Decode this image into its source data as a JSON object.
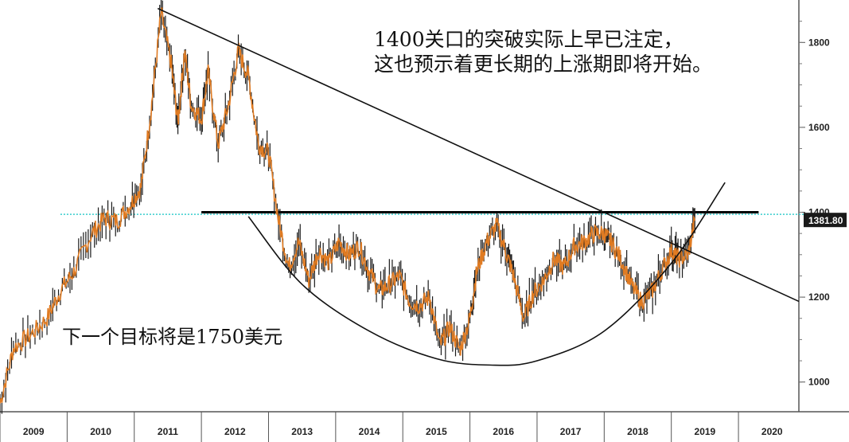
{
  "annotations": {
    "top_line1": "1400关口的突破实际上早已注定，",
    "top_line2": "这也预示着更长期的上涨期即将开始。",
    "bottom": "下一个目标将是1750美元"
  },
  "last_price_label": "1381.80",
  "colors": {
    "price": "#e07b22",
    "wick": "#1a1a1a",
    "resistance": "#000000",
    "dotted_level": "#33cccc",
    "price_tag_bg": "#1a1a1a"
  },
  "chart_data": {
    "type": "line",
    "title": "",
    "xlabel": "",
    "ylabel": "",
    "x_ticks": [
      "2009",
      "2010",
      "2011",
      "2012",
      "2013",
      "2014",
      "2015",
      "2016",
      "2017",
      "2018",
      "2019",
      "2020"
    ],
    "y_ticks": [
      1000,
      1200,
      1400,
      1600,
      1800
    ],
    "ylim": [
      930,
      1900
    ],
    "xlim": [
      2009.0,
      2020.9
    ],
    "grid": false,
    "legend": "none",
    "series": [
      {
        "x": [
          2009.0,
          2009.2,
          2009.45,
          2009.7,
          2009.9,
          2010.1,
          2010.35,
          2010.55,
          2010.75,
          2010.95,
          2011.1,
          2011.25,
          2011.4,
          2011.55,
          2011.65,
          2011.75,
          2011.85,
          2012.0,
          2012.1,
          2012.25,
          2012.4,
          2012.55,
          2012.7,
          2012.85,
          2013.0,
          2013.15,
          2013.3,
          2013.45,
          2013.6,
          2013.75,
          2013.9,
          2014.05,
          2014.2,
          2014.35,
          2014.5,
          2014.65,
          2014.8,
          2014.95,
          2015.1,
          2015.25,
          2015.4,
          2015.55,
          2015.7,
          2015.85,
          2016.0,
          2016.1,
          2016.25,
          2016.4,
          2016.55,
          2016.65,
          2016.8,
          2016.95,
          2017.1,
          2017.25,
          2017.4,
          2017.55,
          2017.7,
          2017.85,
          2018.0,
          2018.1,
          2018.25,
          2018.4,
          2018.55,
          2018.7,
          2018.85,
          2019.0,
          2019.1,
          2019.25,
          2019.35
        ],
        "values": [
          950,
          1080,
          1110,
          1150,
          1215,
          1260,
          1345,
          1385,
          1380,
          1420,
          1460,
          1640,
          1870,
          1750,
          1610,
          1780,
          1650,
          1620,
          1730,
          1560,
          1650,
          1780,
          1720,
          1560,
          1540,
          1380,
          1270,
          1330,
          1240,
          1310,
          1280,
          1330,
          1300,
          1320,
          1260,
          1215,
          1230,
          1250,
          1190,
          1180,
          1200,
          1085,
          1130,
          1075,
          1150,
          1260,
          1330,
          1370,
          1300,
          1250,
          1150,
          1210,
          1240,
          1290,
          1270,
          1320,
          1330,
          1350,
          1350,
          1330,
          1290,
          1230,
          1190,
          1210,
          1260,
          1310,
          1290,
          1300,
          1380
        ]
      }
    ],
    "lines": {
      "resistance_level": 1400,
      "dotted_level": 1395,
      "downtrend_start": [
        2011.35,
        1880
      ],
      "downtrend_end": [
        2020.9,
        1190
      ],
      "curve_points": [
        [
          2012.7,
          1390
        ],
        [
          2013.5,
          1230
        ],
        [
          2014.5,
          1120
        ],
        [
          2015.5,
          1055
        ],
        [
          2016.3,
          1040
        ],
        [
          2017.0,
          1050
        ],
        [
          2018.0,
          1120
        ],
        [
          2019.0,
          1280
        ],
        [
          2019.8,
          1470
        ]
      ]
    }
  }
}
